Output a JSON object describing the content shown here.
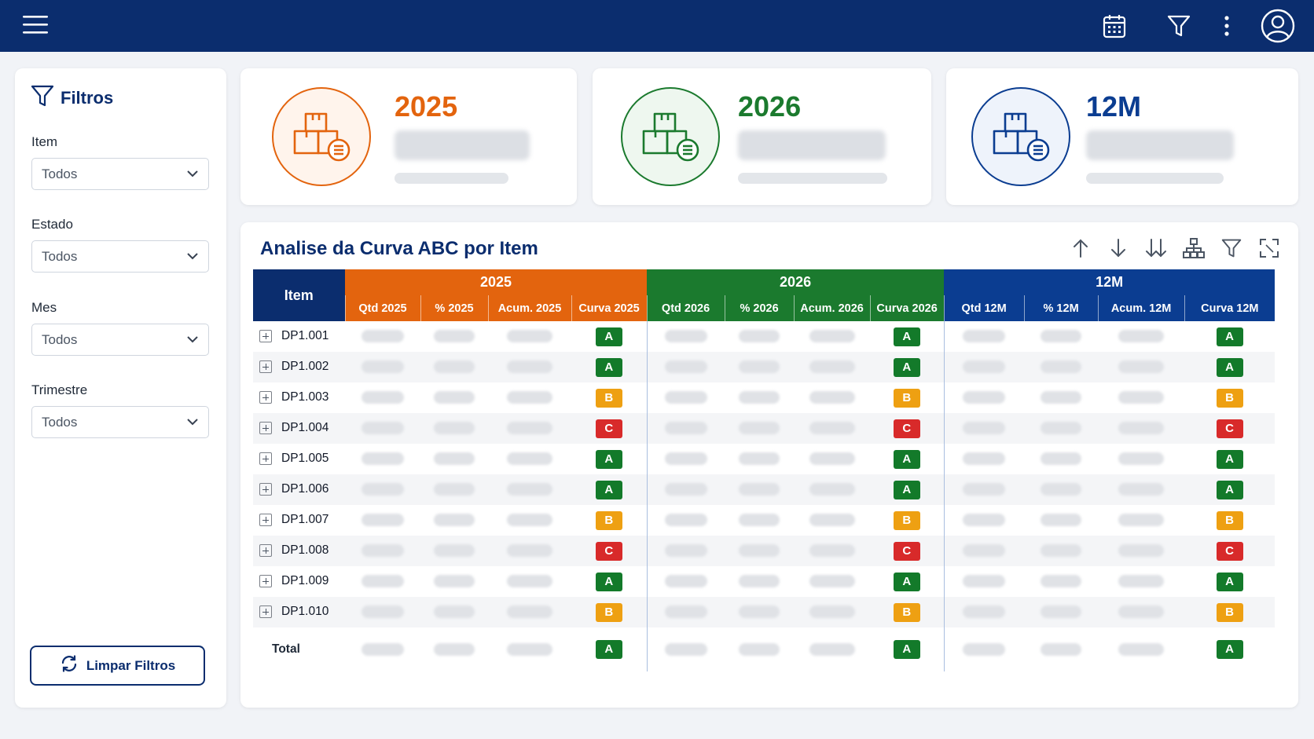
{
  "header": {
    "icons": [
      "menu-icon",
      "calendar-icon",
      "filter-icon",
      "more-vertical-icon",
      "user-icon"
    ]
  },
  "sidebar": {
    "title": "Filtros",
    "filters": [
      {
        "label": "Item",
        "value": "Todos"
      },
      {
        "label": "Estado",
        "value": "Todos"
      },
      {
        "label": "Mes",
        "value": "Todos"
      },
      {
        "label": "Trimestre",
        "value": "Todos"
      }
    ],
    "clear_button": "Limpar Filtros"
  },
  "kpis": [
    {
      "title": "2025",
      "color": "#e3640e"
    },
    {
      "title": "2026",
      "color": "#1b7a2e"
    },
    {
      "title": "12M",
      "color": "#0b3d91"
    }
  ],
  "table": {
    "title": "Analise da Curva ABC por Item",
    "tools": [
      "sort-ascending-icon",
      "sort-descending-icon",
      "expand-all-icon",
      "hierarchy-icon",
      "filter-icon",
      "focus-mode-icon"
    ],
    "item_header": "Item",
    "groups": [
      {
        "label": "2025",
        "color": "#e3640e",
        "columns": [
          "Qtd 2025",
          "% 2025",
          "Acum. 2025",
          "Curva 2025"
        ]
      },
      {
        "label": "2026",
        "color": "#1b7a2e",
        "columns": [
          "Qtd 2026",
          "% 2026",
          "Acum. 2026",
          "Curva 2026"
        ]
      },
      {
        "label": "12M",
        "color": "#0b3d91",
        "columns": [
          "Qtd 12M",
          "% 12M",
          "Acum. 12M",
          "Curva 12M"
        ]
      }
    ],
    "rows": [
      {
        "item": "DP1.001",
        "curves": [
          "A",
          "A",
          "A"
        ]
      },
      {
        "item": "DP1.002",
        "curves": [
          "A",
          "A",
          "A"
        ]
      },
      {
        "item": "DP1.003",
        "curves": [
          "B",
          "B",
          "B"
        ]
      },
      {
        "item": "DP1.004",
        "curves": [
          "C",
          "C",
          "C"
        ]
      },
      {
        "item": "DP1.005",
        "curves": [
          "A",
          "A",
          "A"
        ]
      },
      {
        "item": "DP1.006",
        "curves": [
          "A",
          "A",
          "A"
        ]
      },
      {
        "item": "DP1.007",
        "curves": [
          "B",
          "B",
          "B"
        ]
      },
      {
        "item": "DP1.008",
        "curves": [
          "C",
          "C",
          "C"
        ]
      },
      {
        "item": "DP1.009",
        "curves": [
          "A",
          "A",
          "A"
        ]
      },
      {
        "item": "DP1.010",
        "curves": [
          "B",
          "B",
          "B"
        ]
      }
    ],
    "total": {
      "label": "Total",
      "curves": [
        "A",
        "A",
        "A"
      ]
    },
    "curve_colors": {
      "A": "#137a2a",
      "B": "#eea012",
      "C": "#d82a2a"
    }
  }
}
